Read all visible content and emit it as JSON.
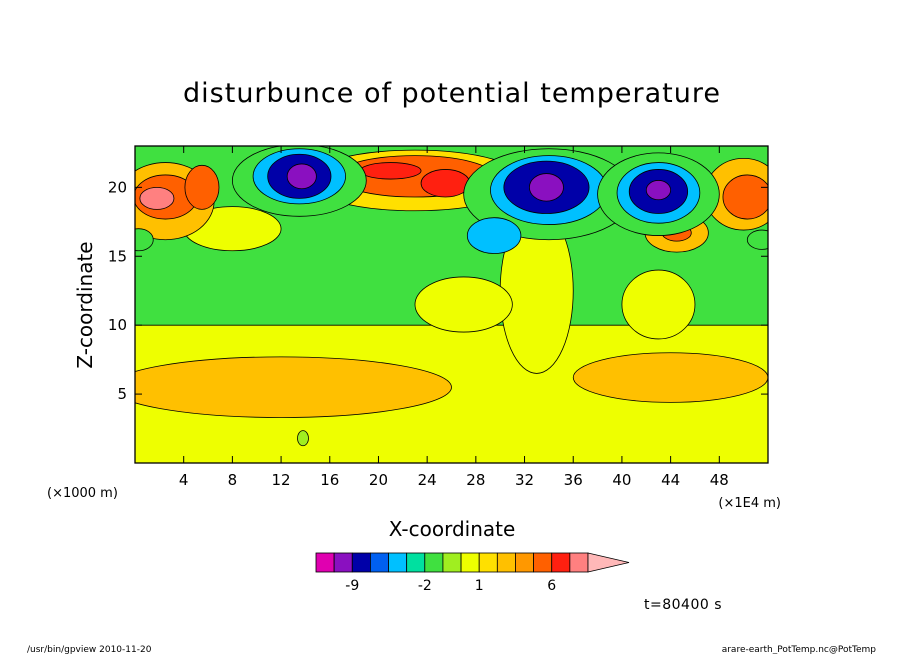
{
  "chart_data": {
    "type": "heatmap",
    "title": "disturbunce of potential temperature",
    "xlabel": "X-coordinate",
    "ylabel": "Z-coordinate",
    "x_unit_left": "(×1000 m)",
    "x_unit_right": "(×1E4 m)",
    "xlim": [
      0,
      52
    ],
    "ylim": [
      0,
      23
    ],
    "x_ticks": [
      4,
      8,
      12,
      16,
      20,
      24,
      28,
      32,
      36,
      40,
      44,
      48
    ],
    "y_ticks": [
      5,
      10,
      15,
      20
    ],
    "time_label": "t=80400 s",
    "colorbar": {
      "levels": [
        -15,
        -12,
        -9,
        -7,
        -5,
        -3,
        -2,
        -1,
        0,
        1,
        2,
        3,
        4,
        6,
        8,
        10,
        12
      ],
      "colors": [
        "#e000b0",
        "#8a10c0",
        "#0000a8",
        "#0060f0",
        "#00c0ff",
        "#00e0a0",
        "#40e040",
        "#a0ee20",
        "#eeff00",
        "#ffe000",
        "#ffc000",
        "#ff9800",
        "#ff6000",
        "#ff2010",
        "#ff8080",
        "#ffb8b8"
      ],
      "tick_labels": [
        {
          "value": -9,
          "label": "-9"
        },
        {
          "value": -2,
          "label": "-2"
        },
        {
          "value": 1,
          "label": "1"
        },
        {
          "value": 6,
          "label": "6"
        }
      ]
    },
    "background_layers": [
      {
        "name": "lower",
        "y_top": 10,
        "color": "#eeff00"
      },
      {
        "name": "upper",
        "y_top": 23,
        "color": "#40e040"
      }
    ],
    "features": [
      {
        "x": 12,
        "y": 5.5,
        "rx": 14,
        "ry": 2.2,
        "value": 2
      },
      {
        "x": 44,
        "y": 6.2,
        "rx": 8,
        "ry": 1.8,
        "value": 2
      },
      {
        "x": 33,
        "y": 12.5,
        "rx": 3,
        "ry": 6,
        "value": 0
      },
      {
        "x": 27,
        "y": 11.5,
        "rx": 4,
        "ry": 2,
        "value": 0
      },
      {
        "x": 43,
        "y": 11.5,
        "rx": 3,
        "ry": 2.5,
        "value": 0
      },
      {
        "x": 8,
        "y": 17,
        "rx": 4,
        "ry": 1.6,
        "value": 0
      },
      {
        "x": 2.5,
        "y": 19,
        "rx": 4,
        "ry": 2.8,
        "value": 2
      },
      {
        "x": 2.5,
        "y": 19.3,
        "rx": 2.6,
        "ry": 1.6,
        "value": 4
      },
      {
        "x": 1.8,
        "y": 19.2,
        "rx": 1.4,
        "ry": 0.8,
        "value": 8
      },
      {
        "x": 5.5,
        "y": 20,
        "rx": 1.4,
        "ry": 1.6,
        "value": 4
      },
      {
        "x": 23,
        "y": 20.5,
        "rx": 9,
        "ry": 2.2,
        "value": 1
      },
      {
        "x": 23,
        "y": 20.8,
        "rx": 6.5,
        "ry": 1.5,
        "value": 4
      },
      {
        "x": 25.5,
        "y": 20.3,
        "rx": 2,
        "ry": 1,
        "value": 6
      },
      {
        "x": 21,
        "y": 21.2,
        "rx": 2.5,
        "ry": 0.6,
        "value": 6
      },
      {
        "x": 50,
        "y": 19.5,
        "rx": 3.2,
        "ry": 2.6,
        "value": 2
      },
      {
        "x": 50.3,
        "y": 19.3,
        "rx": 2,
        "ry": 1.6,
        "value": 4
      },
      {
        "x": 44.5,
        "y": 16.7,
        "rx": 2.6,
        "ry": 1.4,
        "value": 2
      },
      {
        "x": 44.5,
        "y": 16.7,
        "rx": 1.2,
        "ry": 0.6,
        "value": 4
      },
      {
        "x": 13.5,
        "y": 20.5,
        "rx": 5.5,
        "ry": 2.6,
        "value": -2
      },
      {
        "x": 13.5,
        "y": 20.8,
        "rx": 3.8,
        "ry": 2.0,
        "value": -5
      },
      {
        "x": 13.5,
        "y": 20.8,
        "rx": 2.6,
        "ry": 1.6,
        "value": -9
      },
      {
        "x": 13.7,
        "y": 20.8,
        "rx": 1.2,
        "ry": 0.9,
        "value": -12
      },
      {
        "x": 34,
        "y": 19.5,
        "rx": 7,
        "ry": 3.3,
        "value": -2
      },
      {
        "x": 34,
        "y": 19.8,
        "rx": 4.8,
        "ry": 2.5,
        "value": -5
      },
      {
        "x": 33.8,
        "y": 20.0,
        "rx": 3.5,
        "ry": 1.9,
        "value": -9
      },
      {
        "x": 33.8,
        "y": 20.0,
        "rx": 1.4,
        "ry": 1.0,
        "value": -12
      },
      {
        "x": 43,
        "y": 19.5,
        "rx": 5,
        "ry": 3,
        "value": -2
      },
      {
        "x": 43,
        "y": 19.6,
        "rx": 3.4,
        "ry": 2.2,
        "value": -5
      },
      {
        "x": 43,
        "y": 19.7,
        "rx": 2.4,
        "ry": 1.6,
        "value": -9
      },
      {
        "x": 43,
        "y": 19.8,
        "rx": 1.0,
        "ry": 0.7,
        "value": -12
      },
      {
        "x": 29.5,
        "y": 16.5,
        "rx": 2.2,
        "ry": 1.3,
        "value": -5
      },
      {
        "x": 51.5,
        "y": 16.2,
        "rx": 1.2,
        "ry": 0.7,
        "value": -2
      },
      {
        "x": 0.3,
        "y": 16.2,
        "rx": 1.2,
        "ry": 0.8,
        "value": -2
      },
      {
        "x": 13.8,
        "y": 1.8,
        "rx": 0.45,
        "ry": 0.55,
        "value": -1
      }
    ]
  },
  "footer": {
    "left": "/usr/bin/gpview  2010-11-20",
    "right": "arare-earth_PotTemp.nc@PotTemp"
  }
}
